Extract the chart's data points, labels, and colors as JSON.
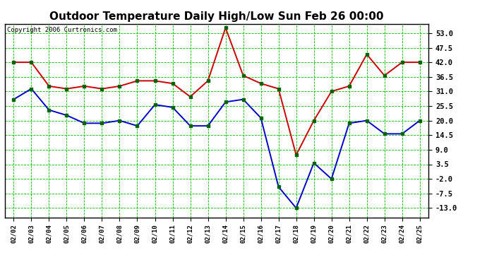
{
  "title": "Outdoor Temperature Daily High/Low Sun Feb 26 00:00",
  "copyright": "Copyright 2006 Curtronics.com",
  "dates": [
    "02/02",
    "02/03",
    "02/04",
    "02/05",
    "02/06",
    "02/07",
    "02/08",
    "02/09",
    "02/10",
    "02/11",
    "02/12",
    "02/13",
    "02/14",
    "02/15",
    "02/16",
    "02/17",
    "02/18",
    "02/19",
    "02/20",
    "02/21",
    "02/22",
    "02/23",
    "02/24",
    "02/25"
  ],
  "high_values": [
    42.0,
    42.0,
    33.0,
    32.0,
    33.0,
    32.0,
    33.0,
    35.0,
    35.0,
    34.0,
    29.0,
    35.0,
    55.0,
    37.0,
    34.0,
    32.0,
    7.0,
    20.0,
    31.0,
    33.0,
    45.0,
    37.0,
    42.0,
    42.0
  ],
  "low_values": [
    28.0,
    32.0,
    24.0,
    22.0,
    19.0,
    19.0,
    20.0,
    18.0,
    26.0,
    25.0,
    18.0,
    18.0,
    27.0,
    28.0,
    21.0,
    -5.0,
    -13.0,
    4.0,
    -2.0,
    19.0,
    20.0,
    15.0,
    15.0,
    20.0
  ],
  "high_color": "#cc0000",
  "low_color": "#0000cc",
  "marker_color": "#006400",
  "bg_color": "#ffffff",
  "grid_color": "#00bb00",
  "title_fontsize": 11,
  "copyright_fontsize": 6.5,
  "xtick_fontsize": 6.5,
  "ytick_fontsize": 7.5,
  "yticks": [
    -13.0,
    -7.5,
    -2.0,
    3.5,
    9.0,
    14.5,
    20.0,
    25.5,
    31.0,
    36.5,
    42.0,
    47.5,
    53.0
  ],
  "ylim": [
    -16.5,
    56.5
  ],
  "linewidth": 1.4,
  "markersize": 3.0
}
